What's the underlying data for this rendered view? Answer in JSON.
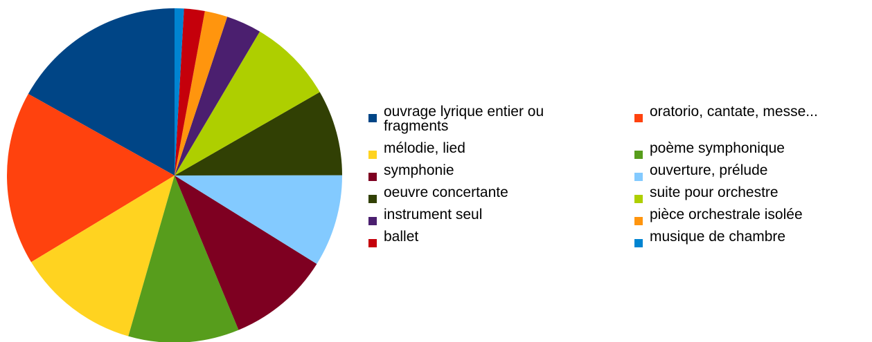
{
  "chart_data": {
    "type": "pie",
    "categories": [
      "ouvrage lyrique entier ou fragments",
      "oratorio, cantate, messe...",
      "mélodie, lied",
      "poème symphonique",
      "symphonie",
      "ouverture, prélude",
      "oeuvre concertante",
      "suite pour orchestre",
      "instrument seul",
      "pièce orchestrale isolée",
      "ballet",
      "musique de chambre"
    ],
    "values": [
      16.9,
      16.8,
      11.9,
      10.7,
      9.9,
      8.9,
      8.3,
      8.2,
      3.4,
      2.2,
      2.0,
      0.9
    ],
    "colors": [
      "#004586",
      "#ff420e",
      "#ffd320",
      "#579d1c",
      "#7e0021",
      "#83caff",
      "#314004",
      "#aecf00",
      "#4b1f6f",
      "#ff950e",
      "#c5000b",
      "#0084d1"
    ],
    "legend": "right"
  }
}
